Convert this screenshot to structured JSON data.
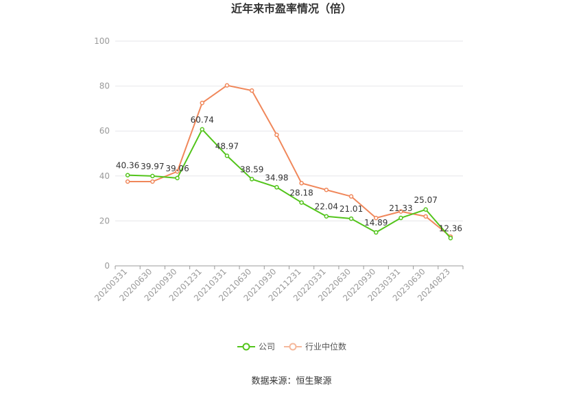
{
  "chart_data": {
    "type": "line",
    "title": "近年来市盈率情况（倍）",
    "xlabel": "",
    "ylabel": "",
    "ylim": [
      0,
      100
    ],
    "yticks": [
      0,
      20,
      40,
      60,
      80,
      100
    ],
    "grid": true,
    "legend_position": "bottom",
    "categories": [
      "20200331",
      "20200630",
      "20200930",
      "20201231",
      "20210331",
      "20210630",
      "20210930",
      "20211231",
      "20220331",
      "20220630",
      "20220930",
      "20230331",
      "20230630",
      "20240823"
    ],
    "series": [
      {
        "name": "公司",
        "color": "#52c41a",
        "show_labels": true,
        "values": [
          40.36,
          39.97,
          39.06,
          60.74,
          48.97,
          38.59,
          34.98,
          28.18,
          22.04,
          21.01,
          14.89,
          21.33,
          25.07,
          12.36
        ]
      },
      {
        "name": "行业中位数",
        "color": "#f0875a",
        "show_labels": false,
        "values": [
          37.5,
          37.5,
          42.0,
          72.5,
          80.3,
          78.0,
          58.3,
          36.8,
          33.8,
          30.9,
          21.3,
          24.2,
          22.0,
          13.0
        ]
      }
    ]
  },
  "footer": {
    "source": "数据来源：恒生聚源"
  }
}
